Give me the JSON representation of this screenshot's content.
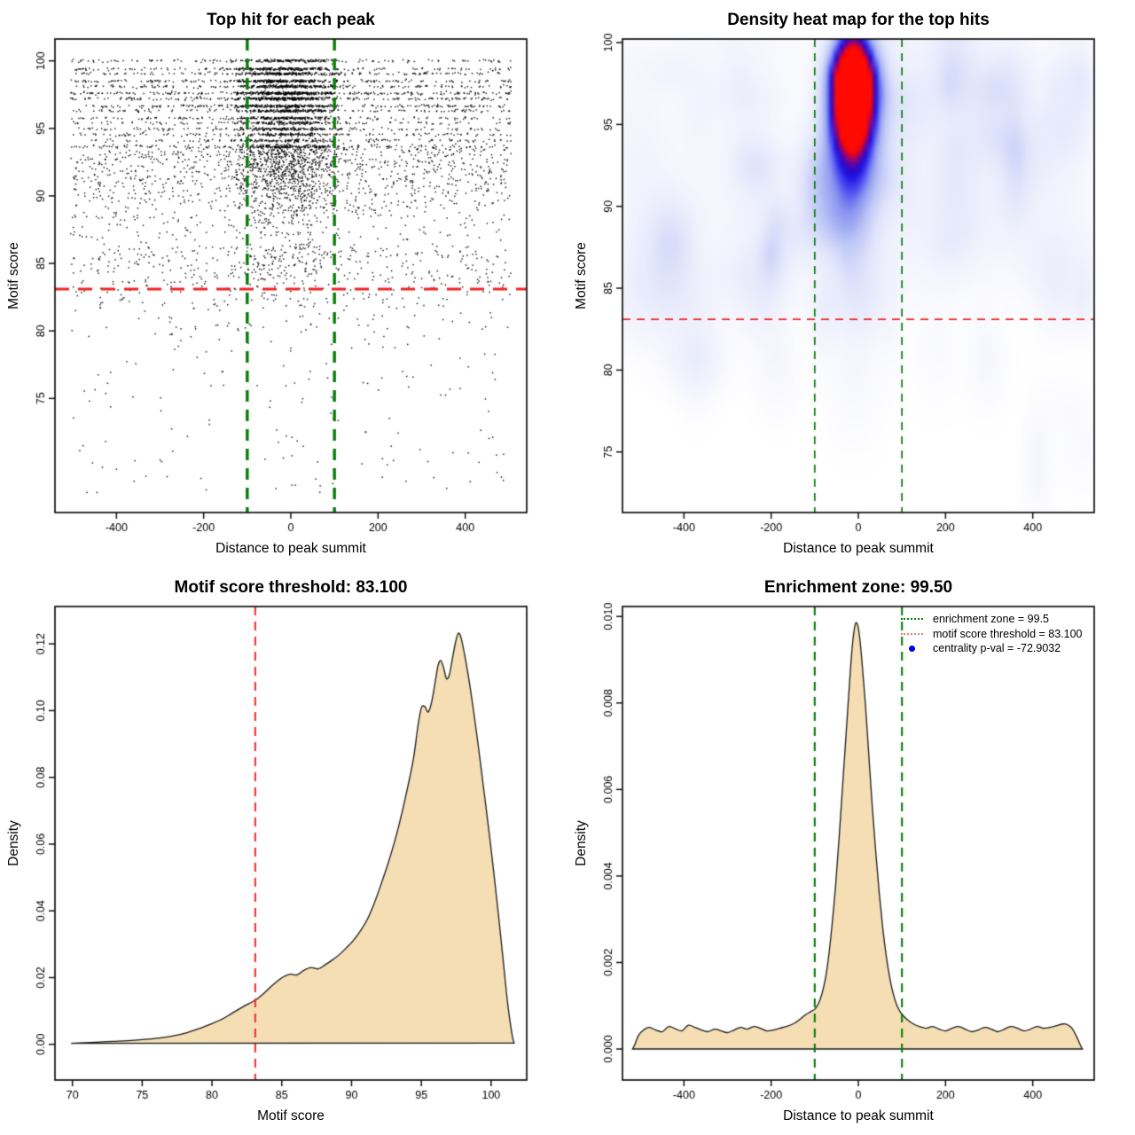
{
  "page": {
    "background": "#ffffff"
  },
  "colors": {
    "threshold_red": "#ee2525",
    "zone_green": "#077d07",
    "density_fill": "#f5deb3",
    "density_stroke": "#1a1a1a",
    "point_black": "#000000",
    "legend_dot_blue": "#0000dd"
  },
  "chart_data": [
    {
      "type": "scatter",
      "title": "Top hit for each peak",
      "xlabel": "Distance to peak summit",
      "ylabel": "Motif score",
      "xlim": [
        -541,
        541
      ],
      "ylim": [
        66.55,
        101.62
      ],
      "xticks": {
        "values": [
          -400,
          -200,
          0,
          200,
          400
        ],
        "labels": [
          "-400",
          "-200",
          "0",
          "200",
          "400"
        ]
      },
      "yticks": {
        "values": [
          75,
          80,
          85,
          90,
          95,
          100
        ],
        "labels": [
          "75",
          "80",
          "85",
          "90",
          "95",
          "100"
        ]
      },
      "grid": false,
      "ref_lines": [
        {
          "orient": "v",
          "value": -100,
          "color": "#077d07",
          "width": 3.4,
          "dash": [
            13,
            9
          ]
        },
        {
          "orient": "v",
          "value": 100,
          "color": "#077d07",
          "width": 3.4,
          "dash": [
            13,
            9
          ]
        },
        {
          "orient": "h",
          "value": 83.1,
          "color": "#ee2525",
          "width": 3,
          "dash": [
            16,
            10
          ]
        }
      ],
      "generator": {
        "seed": 42,
        "n": 7200,
        "point_color": "#000000",
        "bands": [
          [
            100.0,
            2.5
          ],
          [
            99.4,
            3.5
          ],
          [
            99.05,
            3.5
          ],
          [
            98.5,
            4
          ],
          [
            98.1,
            3.5
          ],
          [
            97.6,
            5
          ],
          [
            97.2,
            4.5
          ],
          [
            96.65,
            3.5
          ],
          [
            96.3,
            3
          ],
          [
            95.75,
            3
          ],
          [
            95.4,
            2.5
          ],
          [
            94.95,
            2.6
          ],
          [
            94.55,
            2.2
          ],
          [
            94.1,
            2.2
          ],
          [
            93.65,
            1.8
          ]
        ]
      }
    },
    {
      "type": "heatmap",
      "title": "Density heat map for the top hits",
      "xlabel": "Distance to peak summit",
      "ylabel": "Motif score",
      "xlim": [
        -541,
        541
      ],
      "ylim": [
        71.3,
        100.22
      ],
      "xticks": {
        "values": [
          -400,
          -200,
          0,
          200,
          400
        ],
        "labels": [
          "-400",
          "-200",
          "0",
          "200",
          "400"
        ]
      },
      "yticks": {
        "values": [
          75,
          80,
          85,
          90,
          95,
          100
        ],
        "labels": [
          "75",
          "80",
          "85",
          "90",
          "95",
          "100"
        ]
      },
      "grid": false,
      "hotspot": {
        "center_distance": -12,
        "center_score": 96.8,
        "peak_color": "#ff0a00"
      },
      "ref_lines": [
        {
          "orient": "v",
          "value": -100,
          "color": "#077d07",
          "width": 1.7,
          "dash": [
            9,
            7
          ]
        },
        {
          "orient": "v",
          "value": 100,
          "color": "#077d07",
          "width": 1.7,
          "dash": [
            9,
            7
          ]
        },
        {
          "orient": "h",
          "value": 83.1,
          "color": "#ee2525",
          "width": 1.7,
          "dash": [
            9,
            7
          ]
        }
      ],
      "blobs": [
        {
          "x": -12,
          "y": 98.3,
          "sx": 34,
          "sy": 1.25,
          "a": 0.95
        },
        {
          "x": -12,
          "y": 96.6,
          "sx": 36,
          "sy": 1.6,
          "a": 1.0
        },
        {
          "x": -14,
          "y": 94.9,
          "sx": 34,
          "sy": 1.5,
          "a": 0.6
        },
        {
          "x": -14,
          "y": 92.8,
          "sx": 36,
          "sy": 1.9,
          "a": 0.3
        },
        {
          "x": -16,
          "y": 90.3,
          "sx": 40,
          "sy": 2.6,
          "a": 0.18
        },
        {
          "x": -15,
          "y": 87.6,
          "sx": 46,
          "sy": 3.2,
          "a": 0.1
        },
        {
          "x": -10,
          "y": 100.3,
          "sx": 30,
          "sy": 0.9,
          "a": 0.35
        }
      ],
      "noise": {
        "seed": 7
      },
      "color_stops": [
        [
          0,
          "#ffffff"
        ],
        [
          0.05,
          "#f3f4fd"
        ],
        [
          0.15,
          "#e2e6fb"
        ],
        [
          0.3,
          "#bcc5f6"
        ],
        [
          0.44,
          "#8b96f0"
        ],
        [
          0.56,
          "#4747f2"
        ],
        [
          0.66,
          "#1d11e0"
        ],
        [
          0.74,
          "#3707c0"
        ],
        [
          0.8,
          "#6b059e"
        ],
        [
          0.87,
          "#b00357"
        ],
        [
          0.93,
          "#e60218"
        ],
        [
          1,
          "#ff0a00"
        ]
      ]
    },
    {
      "type": "area",
      "title": "Motif score threshold: 83.100",
      "xlabel": "Motif score",
      "ylabel": "Density",
      "xlim": [
        68.75,
        102.55
      ],
      "ylim": [
        -0.0107,
        0.1312
      ],
      "xticks": {
        "values": [
          70,
          75,
          80,
          85,
          90,
          95,
          100
        ],
        "labels": [
          "70",
          "75",
          "80",
          "85",
          "90",
          "95",
          "100"
        ]
      },
      "yticks": {
        "values": [
          0,
          0.02,
          0.04,
          0.06,
          0.08,
          0.1,
          0.12
        ],
        "labels": [
          "0.00",
          "0.02",
          "0.04",
          "0.06",
          "0.08",
          "0.10",
          "0.12"
        ]
      },
      "grid": false,
      "fill": "#f5deb3",
      "ref_lines": [
        {
          "orient": "v",
          "value": 83.1,
          "color": "#f03030",
          "width": 2.1,
          "dash": [
            10,
            7
          ]
        }
      ],
      "points": [
        [
          69.9,
          0.0003
        ],
        [
          71,
          0.0005
        ],
        [
          72,
          0.0007
        ],
        [
          73,
          0.0009
        ],
        [
          74,
          0.0011
        ],
        [
          75,
          0.0014
        ],
        [
          75.8,
          0.0017
        ],
        [
          76.6,
          0.0021
        ],
        [
          77.4,
          0.0027
        ],
        [
          78.2,
          0.0035
        ],
        [
          79,
          0.0046
        ],
        [
          79.8,
          0.0059
        ],
        [
          80.6,
          0.0073
        ],
        [
          81.4,
          0.0092
        ],
        [
          82.2,
          0.0112
        ],
        [
          83.1,
          0.0132
        ],
        [
          83.7,
          0.0152
        ],
        [
          84.2,
          0.0172
        ],
        [
          84.7,
          0.019
        ],
        [
          85.1,
          0.0202
        ],
        [
          85.6,
          0.021
        ],
        [
          86.1,
          0.0208
        ],
        [
          86.6,
          0.0222
        ],
        [
          87.1,
          0.023
        ],
        [
          87.6,
          0.0226
        ],
        [
          88.1,
          0.0238
        ],
        [
          88.6,
          0.0252
        ],
        [
          89.1,
          0.0268
        ],
        [
          89.6,
          0.0288
        ],
        [
          90.1,
          0.031
        ],
        [
          90.6,
          0.0338
        ],
        [
          91.1,
          0.0372
        ],
        [
          91.6,
          0.042
        ],
        [
          92.1,
          0.0478
        ],
        [
          92.6,
          0.054
        ],
        [
          93.1,
          0.061
        ],
        [
          93.6,
          0.0692
        ],
        [
          94.05,
          0.0776
        ],
        [
          94.45,
          0.086
        ],
        [
          94.75,
          0.0952
        ],
        [
          95.0,
          0.1008
        ],
        [
          95.25,
          0.1012
        ],
        [
          95.5,
          0.0996
        ],
        [
          95.75,
          0.1028
        ],
        [
          96.0,
          0.1088
        ],
        [
          96.2,
          0.1136
        ],
        [
          96.4,
          0.115
        ],
        [
          96.6,
          0.1128
        ],
        [
          96.8,
          0.1096
        ],
        [
          97.0,
          0.1106
        ],
        [
          97.2,
          0.115
        ],
        [
          97.45,
          0.1205
        ],
        [
          97.65,
          0.1232
        ],
        [
          97.85,
          0.1218
        ],
        [
          98.1,
          0.1168
        ],
        [
          98.4,
          0.1096
        ],
        [
          98.7,
          0.1012
        ],
        [
          99.0,
          0.092
        ],
        [
          99.3,
          0.0822
        ],
        [
          99.6,
          0.0722
        ],
        [
          99.9,
          0.062
        ],
        [
          100.2,
          0.0512
        ],
        [
          100.5,
          0.0398
        ],
        [
          100.8,
          0.0278
        ],
        [
          101.0,
          0.0196
        ],
        [
          101.2,
          0.0118
        ],
        [
          101.4,
          0.0056
        ],
        [
          101.55,
          0.0018
        ],
        [
          101.65,
          0.0004
        ]
      ]
    },
    {
      "type": "area",
      "title": "Enrichment zone: 99.50",
      "xlabel": "Distance to peak summit",
      "ylabel": "Density",
      "xlim": [
        -541,
        541
      ],
      "ylim": [
        -0.000717,
        0.01023
      ],
      "xticks": {
        "values": [
          -400,
          -200,
          0,
          200,
          400
        ],
        "labels": [
          "-400",
          "-200",
          "0",
          "200",
          "400"
        ]
      },
      "yticks": {
        "values": [
          0,
          0.002,
          0.004,
          0.006,
          0.008,
          0.01
        ],
        "labels": [
          "0.000",
          "0.002",
          "0.004",
          "0.006",
          "0.008",
          "0.010"
        ]
      },
      "grid": false,
      "fill": "#f5deb3",
      "ref_lines": [
        {
          "orient": "v",
          "value": -100,
          "color": "#077d07",
          "width": 2.1,
          "dash": [
            10,
            7
          ]
        },
        {
          "orient": "v",
          "value": 100,
          "color": "#077d07",
          "width": 2.1,
          "dash": [
            10,
            7
          ]
        }
      ],
      "legend": {
        "items": [
          {
            "icon": "green-dotted-line",
            "label": "enrichment zone = 99.5"
          },
          {
            "icon": "red-dotted-line",
            "label": "motif score threshold = 83.100"
          },
          {
            "icon": "blue-dot",
            "label": "centrality p-val = -72.9032"
          }
        ]
      },
      "points": [
        [
          -518,
          0
        ],
        [
          -512,
          0.00012
        ],
        [
          -505,
          0.0003
        ],
        [
          -495,
          0.00042
        ],
        [
          -480,
          0.0005
        ],
        [
          -465,
          0.00044
        ],
        [
          -450,
          0.0004
        ],
        [
          -435,
          0.00052
        ],
        [
          -420,
          0.00047
        ],
        [
          -405,
          0.00042
        ],
        [
          -390,
          0.00055
        ],
        [
          -375,
          0.0005
        ],
        [
          -360,
          0.00044
        ],
        [
          -345,
          0.0004
        ],
        [
          -330,
          0.00046
        ],
        [
          -315,
          0.00042
        ],
        [
          -300,
          0.00038
        ],
        [
          -285,
          0.00044
        ],
        [
          -270,
          0.0005
        ],
        [
          -255,
          0.00046
        ],
        [
          -240,
          0.00052
        ],
        [
          -225,
          0.00048
        ],
        [
          -210,
          0.00042
        ],
        [
          -195,
          0.00044
        ],
        [
          -180,
          0.00048
        ],
        [
          -165,
          0.00052
        ],
        [
          -150,
          0.00058
        ],
        [
          -140,
          0.00064
        ],
        [
          -130,
          0.00072
        ],
        [
          -120,
          0.0008
        ],
        [
          -110,
          0.00086
        ],
        [
          -100,
          0.00092
        ],
        [
          -92,
          0.00104
        ],
        [
          -84,
          0.00126
        ],
        [
          -76,
          0.0016
        ],
        [
          -68,
          0.00215
        ],
        [
          -60,
          0.0029
        ],
        [
          -52,
          0.0038
        ],
        [
          -44,
          0.0049
        ],
        [
          -36,
          0.0061
        ],
        [
          -28,
          0.0073
        ],
        [
          -20,
          0.0085
        ],
        [
          -14,
          0.0093
        ],
        [
          -8,
          0.00978
        ],
        [
          -3,
          0.00984
        ],
        [
          2,
          0.0096
        ],
        [
          8,
          0.009
        ],
        [
          16,
          0.008
        ],
        [
          24,
          0.0068
        ],
        [
          32,
          0.0056
        ],
        [
          40,
          0.00455
        ],
        [
          48,
          0.0036
        ],
        [
          56,
          0.0028
        ],
        [
          64,
          0.00215
        ],
        [
          72,
          0.00165
        ],
        [
          80,
          0.00128
        ],
        [
          88,
          0.00102
        ],
        [
          96,
          0.00086
        ],
        [
          104,
          0.00076
        ],
        [
          112,
          0.00068
        ],
        [
          120,
          0.00062
        ],
        [
          130,
          0.00056
        ],
        [
          140,
          0.00052
        ],
        [
          155,
          0.00048
        ],
        [
          170,
          0.00052
        ],
        [
          185,
          0.00046
        ],
        [
          200,
          0.00042
        ],
        [
          215,
          0.00048
        ],
        [
          230,
          0.00052
        ],
        [
          245,
          0.00046
        ],
        [
          260,
          0.0004
        ],
        [
          275,
          0.00044
        ],
        [
          290,
          0.0005
        ],
        [
          305,
          0.00046
        ],
        [
          320,
          0.0004
        ],
        [
          335,
          0.00046
        ],
        [
          350,
          0.00052
        ],
        [
          365,
          0.00048
        ],
        [
          380,
          0.00042
        ],
        [
          395,
          0.00046
        ],
        [
          410,
          0.00052
        ],
        [
          425,
          0.00048
        ],
        [
          440,
          0.0005
        ],
        [
          455,
          0.00054
        ],
        [
          470,
          0.00058
        ],
        [
          480,
          0.00056
        ],
        [
          490,
          0.00048
        ],
        [
          500,
          0.0003
        ],
        [
          508,
          0.00012
        ],
        [
          514,
          0
        ]
      ]
    }
  ]
}
